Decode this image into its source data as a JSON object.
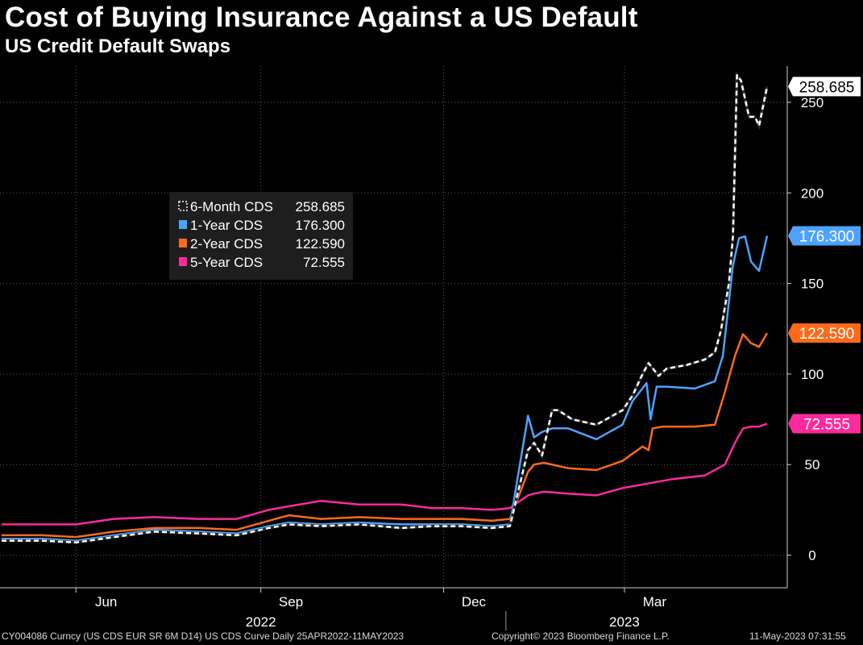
{
  "header": {
    "title": "Cost of Buying Insurance Against a US Default",
    "subtitle": "US Credit Default Swaps"
  },
  "footer": {
    "source": "CY004086 Curncy (US CDS EUR SR 6M D14) US CDS Curve  Daily 25APR2022-11MAY2023",
    "copyright": "Copyright© 2023 Bloomberg Finance L.P.",
    "timestamp": "11-May-2023 07:31:55"
  },
  "chart_data": {
    "type": "line",
    "title": "Cost of Buying Insurance Against a US Default",
    "subtitle": "US Credit Default Swaps",
    "x_range": [
      "2022-04-25",
      "2023-05-11"
    ],
    "ylim": [
      -18,
      270
    ],
    "y_ticks": [
      0,
      50,
      100,
      150,
      200,
      250
    ],
    "x_tick_marks": [
      "2022-06-01",
      "2022-09-01",
      "2022-12-01",
      "2023-03-01"
    ],
    "x_month_labels": [
      {
        "label": "Jun",
        "date": "2022-06-16"
      },
      {
        "label": "Sep",
        "date": "2022-09-16"
      },
      {
        "label": "Dec",
        "date": "2022-12-16"
      },
      {
        "label": "Mar",
        "date": "2023-03-16"
      }
    ],
    "x_year_labels": [
      {
        "label": "2022",
        "date": "2022-09-01"
      },
      {
        "label": "2023",
        "date": "2023-03-01"
      }
    ],
    "year_separator": "2023-01-01",
    "grid": true,
    "legend_position": "upper-left",
    "series": [
      {
        "name": "6-Month CDS",
        "last_value": "258.685",
        "color": "#ffffff",
        "dashed": true,
        "x": [
          "2022-04-25",
          "2022-05-15",
          "2022-06-01",
          "2022-06-20",
          "2022-07-10",
          "2022-08-01",
          "2022-08-20",
          "2022-09-05",
          "2022-09-15",
          "2022-10-01",
          "2022-10-20",
          "2022-11-10",
          "2022-11-25",
          "2022-12-10",
          "2022-12-25",
          "2023-01-03",
          "2023-01-12",
          "2023-01-15",
          "2023-01-19",
          "2023-01-24",
          "2023-01-27",
          "2023-02-03",
          "2023-02-15",
          "2023-02-28",
          "2023-03-05",
          "2023-03-10",
          "2023-03-13",
          "2023-03-18",
          "2023-03-22",
          "2023-04-01",
          "2023-04-10",
          "2023-04-15",
          "2023-04-18",
          "2023-04-22",
          "2023-04-24",
          "2023-04-26",
          "2023-04-28",
          "2023-05-02",
          "2023-05-05",
          "2023-05-07",
          "2023-05-11"
        ],
        "values": [
          8,
          8,
          7,
          10,
          13,
          12,
          11,
          15,
          17,
          16,
          17,
          15,
          16,
          16,
          15,
          16,
          58,
          62,
          55,
          80,
          80,
          75,
          72,
          80,
          88,
          100,
          106,
          99,
          103,
          105,
          108,
          112,
          124,
          150,
          176,
          265,
          262,
          242,
          242,
          237,
          258.7
        ]
      },
      {
        "name": "1-Year CDS",
        "last_value": "176.300",
        "color": "#4da3ff",
        "dashed": false,
        "x": [
          "2022-04-25",
          "2022-05-15",
          "2022-06-01",
          "2022-06-20",
          "2022-07-10",
          "2022-08-01",
          "2022-08-20",
          "2022-09-05",
          "2022-09-15",
          "2022-10-01",
          "2022-10-20",
          "2022-11-10",
          "2022-11-25",
          "2022-12-10",
          "2022-12-25",
          "2023-01-03",
          "2023-01-12",
          "2023-01-15",
          "2023-01-19",
          "2023-01-24",
          "2023-02-01",
          "2023-02-15",
          "2023-02-28",
          "2023-03-05",
          "2023-03-12",
          "2023-03-14",
          "2023-03-17",
          "2023-03-22",
          "2023-04-05",
          "2023-04-15",
          "2023-04-19",
          "2023-04-24",
          "2023-04-27",
          "2023-04-30",
          "2023-05-03",
          "2023-05-07",
          "2023-05-11"
        ],
        "values": [
          9,
          9,
          8,
          11,
          14,
          13,
          12,
          16,
          18,
          17,
          18,
          17,
          17,
          17,
          16,
          17,
          77,
          65,
          68,
          70,
          70,
          64,
          72,
          85,
          95,
          75,
          93,
          93,
          92,
          96,
          110,
          160,
          175,
          176,
          162,
          157,
          176.3
        ]
      },
      {
        "name": "2-Year CDS",
        "last_value": "122.590",
        "color": "#ff6a1a",
        "dashed": false,
        "x": [
          "2022-04-25",
          "2022-05-15",
          "2022-06-01",
          "2022-06-20",
          "2022-07-10",
          "2022-08-01",
          "2022-08-20",
          "2022-09-05",
          "2022-09-15",
          "2022-10-01",
          "2022-10-20",
          "2022-11-10",
          "2022-11-25",
          "2022-12-10",
          "2022-12-25",
          "2023-01-03",
          "2023-01-12",
          "2023-01-15",
          "2023-01-20",
          "2023-02-01",
          "2023-02-15",
          "2023-02-28",
          "2023-03-10",
          "2023-03-13",
          "2023-03-15",
          "2023-03-20",
          "2023-04-05",
          "2023-04-15",
          "2023-04-20",
          "2023-04-25",
          "2023-04-29",
          "2023-05-03",
          "2023-05-07",
          "2023-05-11"
        ],
        "values": [
          11,
          11,
          10,
          13,
          15,
          15,
          14,
          19,
          22,
          20,
          21,
          20,
          20,
          20,
          19,
          20,
          46,
          50,
          51,
          48,
          47,
          52,
          60,
          58,
          70,
          71,
          71,
          72,
          90,
          110,
          122,
          117,
          115,
          122.6
        ]
      },
      {
        "name": "5-Year CDS",
        "last_value": "72.555",
        "color": "#ff2a9c",
        "dashed": false,
        "x": [
          "2022-04-25",
          "2022-05-15",
          "2022-06-01",
          "2022-06-20",
          "2022-07-10",
          "2022-08-01",
          "2022-08-20",
          "2022-09-05",
          "2022-09-15",
          "2022-10-01",
          "2022-10-20",
          "2022-11-10",
          "2022-11-25",
          "2022-12-10",
          "2022-12-25",
          "2023-01-03",
          "2023-01-12",
          "2023-01-15",
          "2023-01-20",
          "2023-02-01",
          "2023-02-15",
          "2023-02-28",
          "2023-03-15",
          "2023-03-25",
          "2023-04-10",
          "2023-04-20",
          "2023-04-25",
          "2023-04-29",
          "2023-05-03",
          "2023-05-07",
          "2023-05-11"
        ],
        "values": [
          17,
          17,
          17,
          20,
          21,
          20,
          20,
          25,
          27,
          30,
          28,
          28,
          26,
          26,
          25,
          26,
          33,
          34,
          35,
          34,
          33,
          37,
          40,
          42,
          44,
          50,
          62,
          70,
          71,
          71,
          72.6
        ]
      }
    ]
  }
}
